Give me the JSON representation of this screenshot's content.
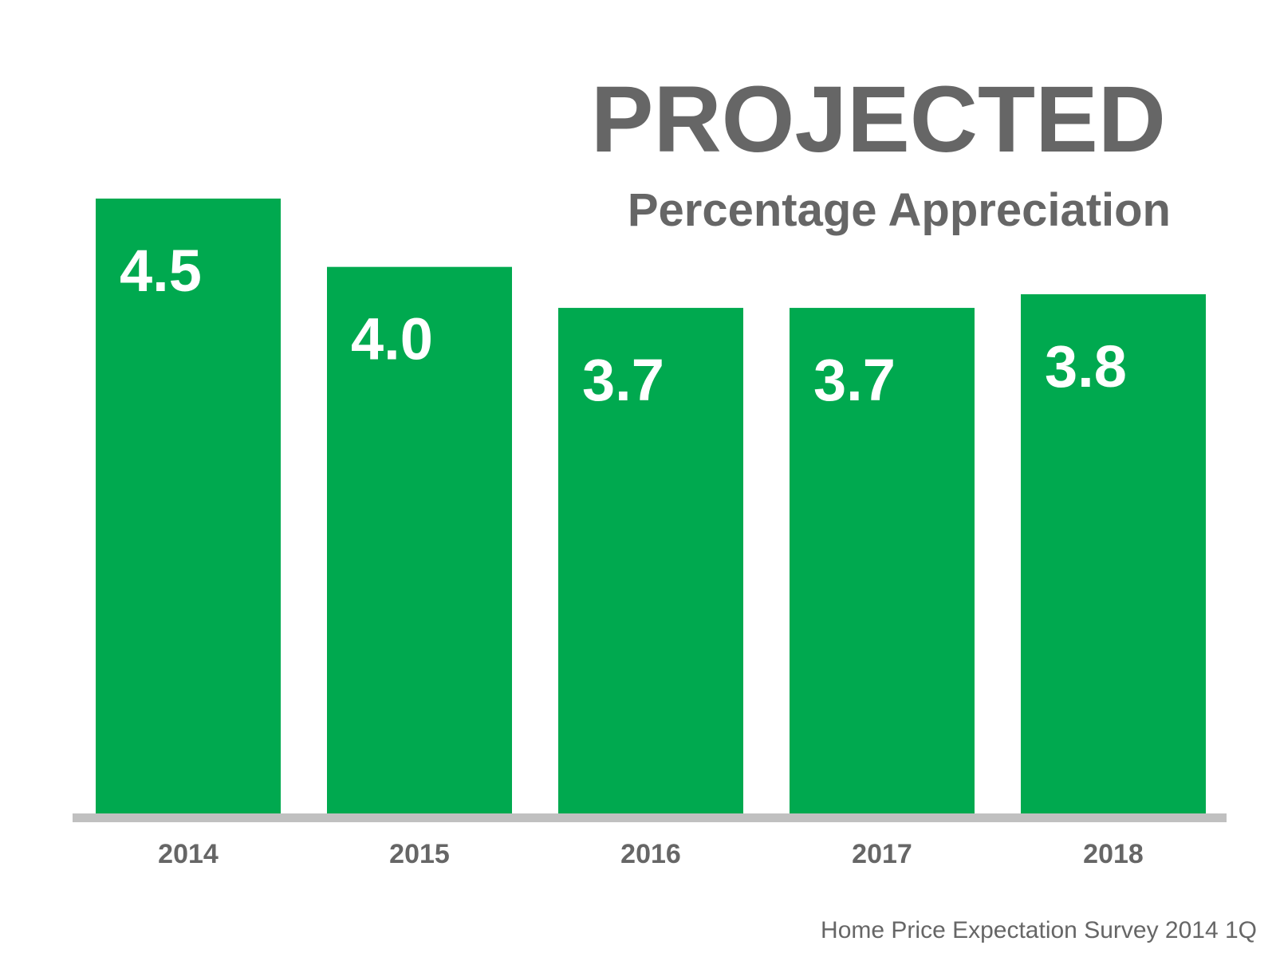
{
  "chart_data": {
    "type": "bar",
    "title": "PROJECTED",
    "subtitle": "Percentage Appreciation",
    "categories": [
      "2014",
      "2015",
      "2016",
      "2017",
      "2018"
    ],
    "values": [
      4.5,
      4.0,
      3.7,
      3.7,
      3.8
    ],
    "value_labels": [
      "4.5",
      "4.0",
      "3.7",
      "3.7",
      "3.8"
    ],
    "xlabel": "",
    "ylabel": "",
    "ylim": [
      0,
      4.5
    ],
    "grid": false,
    "legend": "none",
    "source": "Home Price Expectation Survey 2014 1Q"
  },
  "colors": {
    "bar": "#00a94f",
    "baseline": "#c0c0c0",
    "text_gray": "#666666",
    "value_text": "#ffffff"
  }
}
